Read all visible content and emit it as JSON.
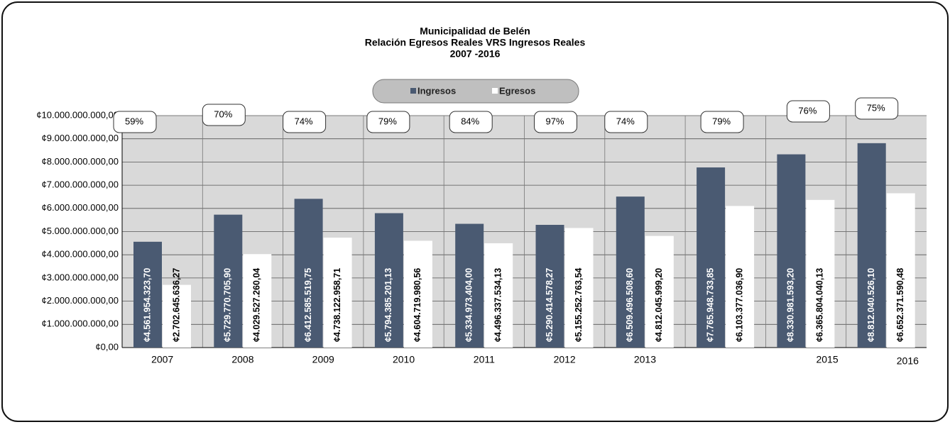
{
  "chart_data": {
    "type": "bar",
    "title": "Municipalidad de Belén",
    "subtitle": "Relación Egresos Reales VRS Ingresos Reales",
    "period": "2007 -2016",
    "categories": [
      "2007",
      "2008",
      "2009",
      "2010",
      "2011",
      "2012",
      "2013",
      null,
      "2015",
      "2016"
    ],
    "series": [
      {
        "name": "Ingresos",
        "color": "#4a5a72",
        "values": [
          4561954323.7,
          5729770705.9,
          6412585519.75,
          5794385201.13,
          5334973404.0,
          5290414578.27,
          6509496508.6,
          7765948733.85,
          8330981593.2,
          8812040526.1
        ],
        "value_labels": [
          "¢4.561.954.323,70",
          "¢5.729.770.705,90",
          "¢6.412.585.519,75",
          "¢5.794.385.201,13",
          "¢5.334.973.404,00",
          "¢5.290.414.578,27",
          "¢6.509.496.508,60",
          "¢7.765.948.733,85",
          "¢8.330.981.593,20",
          "¢8.812.040.526,10"
        ]
      },
      {
        "name": "Egresos",
        "color": "#ffffff",
        "values": [
          2702645636.27,
          4029527260.04,
          4738122958.71,
          4604719980.56,
          4496337534.13,
          5155252763.54,
          4812045999.2,
          6103377036.9,
          6365804040.13,
          6652371590.48
        ],
        "value_labels": [
          "¢2.702.645.636,27",
          "¢4.029.527.260,04",
          "¢4.738.122.958,71",
          "¢4.604.719.980,56",
          "¢4.496.337.534,13",
          "¢5.155.252.763,54",
          "¢4.812.045.999,20",
          "¢6.103.377.036,90",
          "¢6.365.804.040,13",
          "¢6.652.371.590,48"
        ]
      }
    ],
    "annotations": [
      "59%",
      "70%",
      "74%",
      "79%",
      "84%",
      "97%",
      "74%",
      "79%",
      "76%",
      "75%"
    ],
    "ylim": [
      0,
      10000000000
    ],
    "yticks": [
      {
        "value": 0,
        "label": "¢0,00"
      },
      {
        "value": 1000000000,
        "label": "¢1.000.000.000,00"
      },
      {
        "value": 2000000000,
        "label": "¢2.000.000.000,00"
      },
      {
        "value": 3000000000,
        "label": "¢3.000.000.000,00"
      },
      {
        "value": 4000000000,
        "label": "¢4.000.000.000,00"
      },
      {
        "value": 5000000000,
        "label": "¢5.000.000.000,00"
      },
      {
        "value": 6000000000,
        "label": "¢6.000.000.000,00"
      },
      {
        "value": 7000000000,
        "label": "¢7.000.000.000,00"
      },
      {
        "value": 8000000000,
        "label": "¢8.000.000.000,00"
      },
      {
        "value": 9000000000,
        "label": "¢9.000.000.000,00"
      },
      {
        "value": 10000000000,
        "label": "¢10.000.000.000,00"
      }
    ],
    "grid": true
  }
}
